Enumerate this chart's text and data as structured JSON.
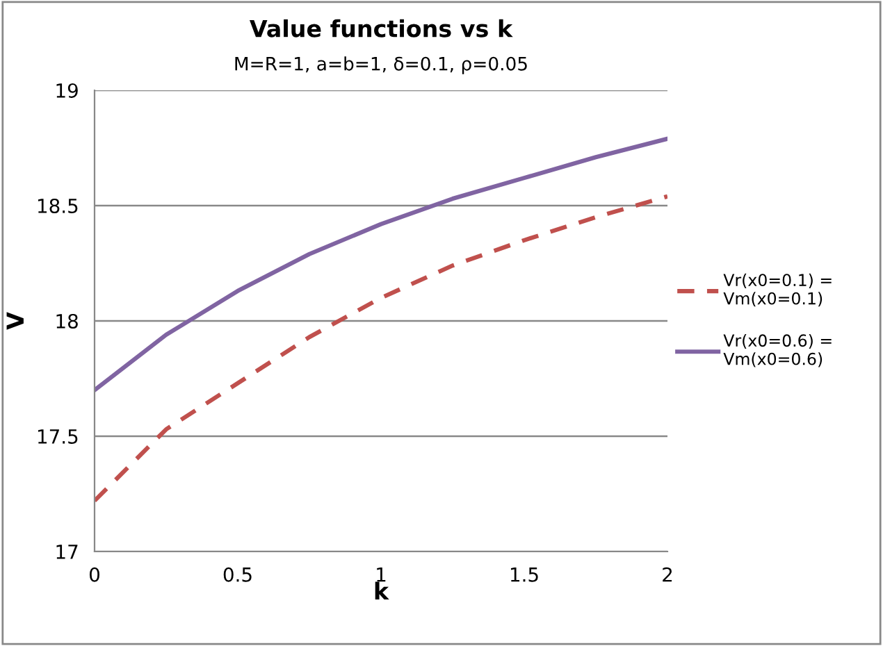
{
  "chart_data": {
    "type": "line",
    "title": "Value functions vs k",
    "subtitle": "M=R=1, a=b=1, δ=0.1, ρ=0.05",
    "xlabel": "k",
    "ylabel": "V",
    "x": [
      0,
      0.25,
      0.5,
      0.75,
      1.0,
      1.25,
      1.5,
      1.75,
      2.0
    ],
    "series": [
      {
        "name": "Vr(x0=0.1) =\nVm(x0=0.1)",
        "color": "#c0504d",
        "line_style": "dashed",
        "values": [
          17.22,
          17.53,
          17.73,
          17.93,
          18.1,
          18.24,
          18.35,
          18.45,
          18.54
        ]
      },
      {
        "name": "Vr(x0=0.6) =\nVm(x0=0.6)",
        "color": "#8064a2",
        "line_style": "solid",
        "values": [
          17.7,
          17.94,
          18.13,
          18.29,
          18.42,
          18.53,
          18.62,
          18.71,
          18.79
        ]
      }
    ],
    "xlim": [
      0,
      2
    ],
    "xticks": [
      0,
      0.5,
      1,
      1.5,
      2
    ],
    "ylim": [
      17,
      19
    ],
    "yticks": [
      17,
      17.5,
      18,
      18.5,
      19
    ],
    "grid": "y",
    "legend": "right",
    "marker": "none"
  }
}
